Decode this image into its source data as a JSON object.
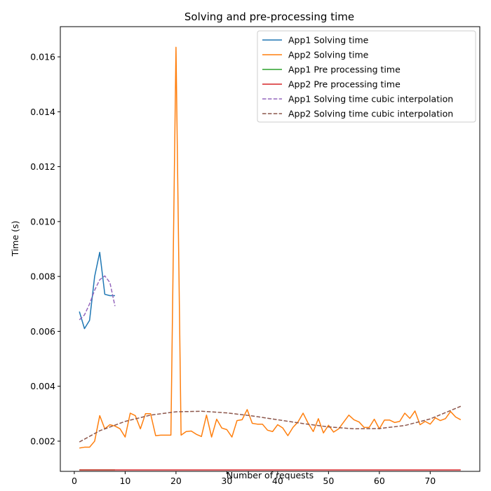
{
  "chart_data": {
    "type": "line",
    "title": "Solving and pre-processing time",
    "xlabel": "Number of requests",
    "ylabel": "Time (s)",
    "xlim": [
      -2.75,
      79.75
    ],
    "ylim": [
      0.0009,
      0.0171
    ],
    "xticks": [
      0,
      10,
      20,
      30,
      40,
      50,
      60,
      70
    ],
    "yticks": [
      0.002,
      0.004,
      0.006,
      0.008,
      0.01,
      0.012,
      0.014,
      0.016
    ],
    "ytick_labels": [
      "0.002",
      "0.004",
      "0.006",
      "0.008",
      "0.010",
      "0.012",
      "0.014",
      "0.016"
    ],
    "grid": false,
    "legend_position": "top-right",
    "series": [
      {
        "name": "App1 Solving time",
        "color": "#1f77b4",
        "style": "solid",
        "x": [
          1,
          2,
          3,
          4,
          5,
          6,
          7,
          8
        ],
        "y": [
          0.00672,
          0.0061,
          0.0064,
          0.008,
          0.00888,
          0.00735,
          0.0073,
          0.0073
        ]
      },
      {
        "name": "App2 Solving time",
        "color": "#ff7f0e",
        "style": "solid",
        "x": [
          1,
          2,
          3,
          4,
          5,
          6,
          7,
          8,
          9,
          10,
          11,
          12,
          13,
          14,
          15,
          16,
          17,
          18,
          19,
          20,
          21,
          22,
          23,
          24,
          25,
          26,
          27,
          28,
          29,
          30,
          31,
          32,
          33,
          34,
          35,
          36,
          37,
          38,
          39,
          40,
          41,
          42,
          43,
          44,
          45,
          46,
          47,
          48,
          49,
          50,
          51,
          52,
          53,
          54,
          55,
          56,
          57,
          58,
          59,
          60,
          61,
          62,
          63,
          64,
          65,
          66,
          67,
          68,
          69,
          70,
          71,
          72,
          73,
          74,
          75,
          76
        ],
        "y": [
          0.00175,
          0.00178,
          0.00178,
          0.002,
          0.00293,
          0.00245,
          0.0026,
          0.00255,
          0.00245,
          0.00215,
          0.00302,
          0.00293,
          0.00245,
          0.003,
          0.003,
          0.0022,
          0.00222,
          0.00222,
          0.00222,
          0.01635,
          0.00222,
          0.00235,
          0.00237,
          0.00225,
          0.00217,
          0.00295,
          0.00215,
          0.0028,
          0.00248,
          0.00242,
          0.00215,
          0.00275,
          0.00278,
          0.00315,
          0.00265,
          0.00262,
          0.00262,
          0.0024,
          0.00235,
          0.0026,
          0.00248,
          0.0022,
          0.0025,
          0.0027,
          0.00302,
          0.00265,
          0.00235,
          0.00282,
          0.0023,
          0.00258,
          0.00233,
          0.00245,
          0.0027,
          0.00295,
          0.00278,
          0.0027,
          0.0025,
          0.0025,
          0.0028,
          0.00245,
          0.00277,
          0.00277,
          0.00268,
          0.00272,
          0.00302,
          0.00283,
          0.0031,
          0.0026,
          0.00272,
          0.00262,
          0.00285,
          0.00275,
          0.00282,
          0.00308,
          0.00288,
          0.00278
        ]
      },
      {
        "name": "App1 Pre processing time",
        "color": "#2ca02c",
        "style": "solid",
        "x": [
          1,
          8
        ],
        "y": [
          0.00095,
          0.00095
        ]
      },
      {
        "name": "App2 Pre processing time",
        "color": "#d62728",
        "style": "solid",
        "x": [
          1,
          76
        ],
        "y": [
          0.00095,
          0.00095
        ]
      },
      {
        "name": "App1 Solving time cubic interpolation",
        "color": "#9467bd",
        "style": "dashed",
        "x": [
          1,
          2,
          3,
          4,
          5,
          6,
          7,
          8
        ],
        "y": [
          0.00642,
          0.0066,
          0.007,
          0.0075,
          0.00788,
          0.00802,
          0.00778,
          0.00692
        ]
      },
      {
        "name": "App2 Solving time cubic interpolation",
        "color": "#8c564b",
        "style": "dashed",
        "x": [
          1,
          5,
          10,
          15,
          20,
          25,
          30,
          35,
          40,
          45,
          50,
          55,
          60,
          65,
          70,
          76
        ],
        "y": [
          0.00197,
          0.00238,
          0.00272,
          0.00295,
          0.00307,
          0.00309,
          0.00303,
          0.00292,
          0.00278,
          0.00264,
          0.00252,
          0.00245,
          0.00246,
          0.00257,
          0.00281,
          0.00327
        ]
      }
    ]
  }
}
